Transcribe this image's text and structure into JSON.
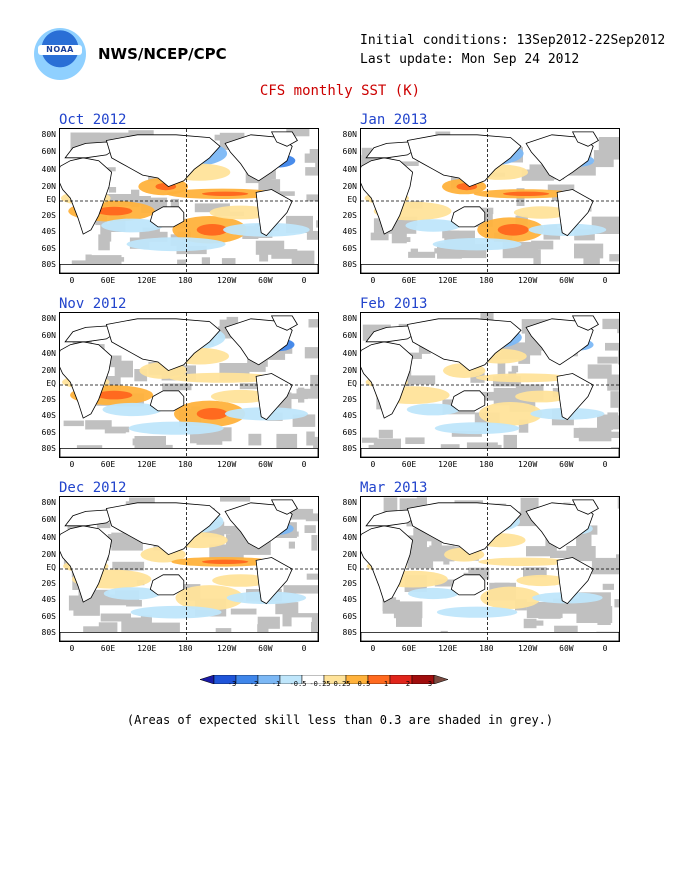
{
  "header": {
    "logo_text": "NOAA",
    "org": "NWS/NCEP/CPC",
    "initial_conditions": "Initial conditions: 13Sep2012-22Sep2012",
    "last_update": "Last update: Mon Sep 24 2012",
    "title": "CFS monthly SST (K)"
  },
  "axes": {
    "lat_labels": [
      "80N",
      "60N",
      "40N",
      "20N",
      "EQ",
      "20S",
      "40S",
      "60S",
      "80S"
    ],
    "lon_labels": [
      "0",
      "60E",
      "120E",
      "180",
      "120W",
      "60W",
      "0"
    ]
  },
  "panels": [
    {
      "title": "Oct 2012",
      "anomaly_strength": 1.0
    },
    {
      "title": "Jan 2013",
      "anomaly_strength": 0.75
    },
    {
      "title": "Nov 2012",
      "anomaly_strength": 0.9
    },
    {
      "title": "Feb 2013",
      "anomaly_strength": 0.65
    },
    {
      "title": "Dec 2012",
      "anomaly_strength": 0.8
    },
    {
      "title": "Mar 2013",
      "anomaly_strength": 0.55
    }
  ],
  "colorbar": {
    "ticks": [
      "-3",
      "-2",
      "-1",
      "-0.5",
      "-0.25",
      "0.25",
      "0.5",
      "1",
      "2",
      "3"
    ],
    "colors": [
      "#1a1aa6",
      "#1f55d9",
      "#3f86ea",
      "#7cb8f5",
      "#bfe6fb",
      "#ffffff",
      "#ffe39a",
      "#ffb23c",
      "#ff6a1f",
      "#e0251b",
      "#a00d0d",
      "#7a4a40"
    ]
  },
  "colors": {
    "land": "#ffffff",
    "low_skill": "#c0c0c0",
    "title": "#cc0000",
    "panel_title": "#2244cc"
  },
  "note": "(Areas of expected skill less than 0.3 are shaded in grey.)"
}
